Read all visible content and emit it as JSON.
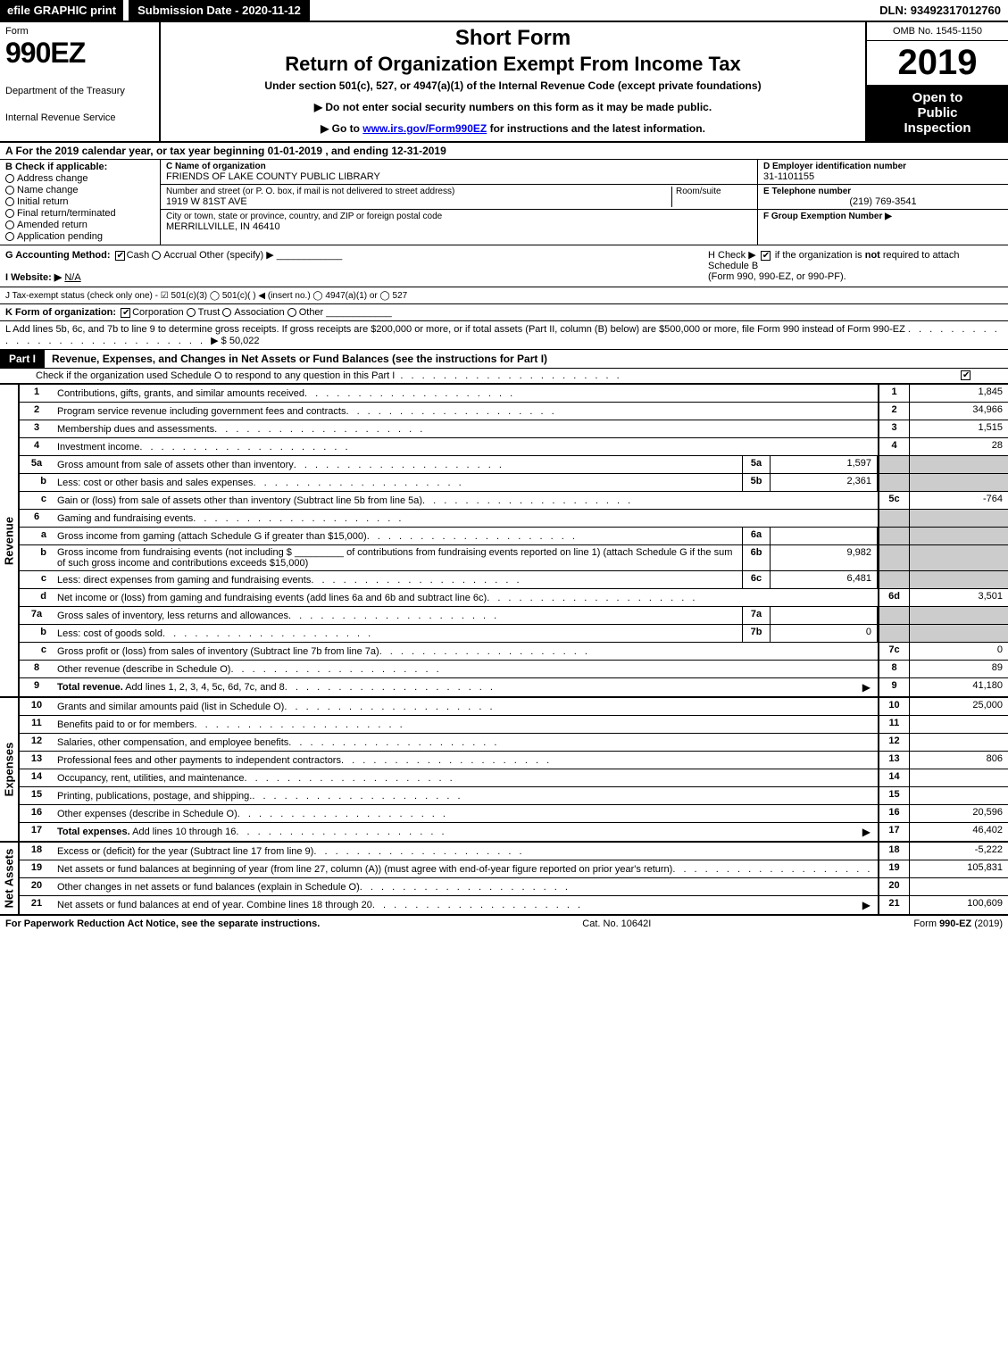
{
  "top": {
    "efile": "efile GRAPHIC print",
    "submission_label": "Submission Date - 2020-11-12",
    "dln": "DLN: 93492317012760"
  },
  "header": {
    "form_label": "Form",
    "form_number": "990EZ",
    "dept1": "Department of the Treasury",
    "dept2": "Internal Revenue Service",
    "short_form": "Short Form",
    "return_title": "Return of Organization Exempt From Income Tax",
    "under_section": "Under section 501(c), 527, or 4947(a)(1) of the Internal Revenue Code (except private foundations)",
    "instr1_prefix": "▶ Do not enter social security numbers on this form as it may be made public.",
    "instr2_prefix": "▶ Go to ",
    "instr2_link": "www.irs.gov/Form990EZ",
    "instr2_suffix": " for instructions and the latest information.",
    "omb": "OMB No. 1545-1150",
    "tax_year": "2019",
    "open1": "Open to",
    "open2": "Public",
    "open3": "Inspection"
  },
  "period": "A For the 2019 calendar year, or tax year beginning 01-01-2019 , and ending 12-31-2019",
  "box_b": {
    "title": "B Check if applicable:",
    "opts": [
      "Address change",
      "Name change",
      "Initial return",
      "Final return/terminated",
      "Amended return",
      "Application pending"
    ]
  },
  "box_c": {
    "name_lbl": "C Name of organization",
    "name_val": "FRIENDS OF LAKE COUNTY PUBLIC LIBRARY",
    "addr_lbl": "Number and street (or P. O. box, if mail is not delivered to street address)",
    "addr_val": "1919 W 81ST AVE",
    "room_lbl": "Room/suite",
    "city_lbl": "City or town, state or province, country, and ZIP or foreign postal code",
    "city_val": "MERRILLVILLE, IN  46410"
  },
  "box_d": {
    "ein_lbl": "D Employer identification number",
    "ein_val": "31-1101155",
    "phone_lbl": "E Telephone number",
    "phone_val": "(219) 769-3541",
    "group_lbl": "F Group Exemption Number ▶"
  },
  "g_row": {
    "label": "G Accounting Method:",
    "cash": "Cash",
    "accrual": "Accrual",
    "other": "Other (specify) ▶"
  },
  "h_row": {
    "text1": "H Check ▶",
    "text2": "if the organization is not required to attach Schedule B",
    "text3": "(Form 990, 990-EZ, or 990-PF)."
  },
  "i_row": {
    "label": "I Website: ▶",
    "val": "N/A"
  },
  "j_row": "J Tax-exempt status (check only one) - ☑ 501(c)(3)  ◯ 501(c)(  ) ◀ (insert no.)  ◯ 4947(a)(1) or  ◯ 527",
  "k_row": {
    "label": "K Form of organization:",
    "corp": "Corporation",
    "trust": "Trust",
    "assoc": "Association",
    "other": "Other"
  },
  "l_row": {
    "text": "L Add lines 5b, 6c, and 7b to line 9 to determine gross receipts. If gross receipts are $200,000 or more, or if total assets (Part II, column (B) below) are $500,000 or more, file Form 990 instead of Form 990-EZ",
    "amount": "▶ $ 50,022"
  },
  "part1": {
    "label": "Part I",
    "title": "Revenue, Expenses, and Changes in Net Assets or Fund Balances (see the instructions for Part I)",
    "sub": "Check if the organization used Schedule O to respond to any question in this Part I"
  },
  "revenue_label": "Revenue",
  "expenses_label": "Expenses",
  "netassets_label": "Net Assets",
  "lines": {
    "l1": {
      "n": "1",
      "d": "Contributions, gifts, grants, and similar amounts received",
      "rn": "1",
      "rv": "1,845"
    },
    "l2": {
      "n": "2",
      "d": "Program service revenue including government fees and contracts",
      "rn": "2",
      "rv": "34,966"
    },
    "l3": {
      "n": "3",
      "d": "Membership dues and assessments",
      "rn": "3",
      "rv": "1,515"
    },
    "l4": {
      "n": "4",
      "d": "Investment income",
      "rn": "4",
      "rv": "28"
    },
    "l5a": {
      "n": "5a",
      "d": "Gross amount from sale of assets other than inventory",
      "mn": "5a",
      "mv": "1,597"
    },
    "l5b": {
      "n": "b",
      "d": "Less: cost or other basis and sales expenses",
      "mn": "5b",
      "mv": "2,361"
    },
    "l5c": {
      "n": "c",
      "d": "Gain or (loss) from sale of assets other than inventory (Subtract line 5b from line 5a)",
      "rn": "5c",
      "rv": "-764"
    },
    "l6": {
      "n": "6",
      "d": "Gaming and fundraising events"
    },
    "l6a": {
      "n": "a",
      "d": "Gross income from gaming (attach Schedule G if greater than $15,000)",
      "mn": "6a",
      "mv": ""
    },
    "l6b": {
      "n": "b",
      "d": "Gross income from fundraising events (not including $ _________ of contributions from fundraising events reported on line 1) (attach Schedule G if the sum of such gross income and contributions exceeds $15,000)",
      "mn": "6b",
      "mv": "9,982"
    },
    "l6c": {
      "n": "c",
      "d": "Less: direct expenses from gaming and fundraising events",
      "mn": "6c",
      "mv": "6,481"
    },
    "l6d": {
      "n": "d",
      "d": "Net income or (loss) from gaming and fundraising events (add lines 6a and 6b and subtract line 6c)",
      "rn": "6d",
      "rv": "3,501"
    },
    "l7a": {
      "n": "7a",
      "d": "Gross sales of inventory, less returns and allowances",
      "mn": "7a",
      "mv": ""
    },
    "l7b": {
      "n": "b",
      "d": "Less: cost of goods sold",
      "mn": "7b",
      "mv": "0"
    },
    "l7c": {
      "n": "c",
      "d": "Gross profit or (loss) from sales of inventory (Subtract line 7b from line 7a)",
      "rn": "7c",
      "rv": "0"
    },
    "l8": {
      "n": "8",
      "d": "Other revenue (describe in Schedule O)",
      "rn": "8",
      "rv": "89"
    },
    "l9": {
      "n": "9",
      "d": "Total revenue. Add lines 1, 2, 3, 4, 5c, 6d, 7c, and 8",
      "rn": "9",
      "rv": "41,180",
      "arrow": true,
      "bold": true
    },
    "l10": {
      "n": "10",
      "d": "Grants and similar amounts paid (list in Schedule O)",
      "rn": "10",
      "rv": "25,000"
    },
    "l11": {
      "n": "11",
      "d": "Benefits paid to or for members",
      "rn": "11",
      "rv": ""
    },
    "l12": {
      "n": "12",
      "d": "Salaries, other compensation, and employee benefits",
      "rn": "12",
      "rv": ""
    },
    "l13": {
      "n": "13",
      "d": "Professional fees and other payments to independent contractors",
      "rn": "13",
      "rv": "806"
    },
    "l14": {
      "n": "14",
      "d": "Occupancy, rent, utilities, and maintenance",
      "rn": "14",
      "rv": ""
    },
    "l15": {
      "n": "15",
      "d": "Printing, publications, postage, and shipping.",
      "rn": "15",
      "rv": ""
    },
    "l16": {
      "n": "16",
      "d": "Other expenses (describe in Schedule O)",
      "rn": "16",
      "rv": "20,596"
    },
    "l17": {
      "n": "17",
      "d": "Total expenses. Add lines 10 through 16",
      "rn": "17",
      "rv": "46,402",
      "arrow": true,
      "bold": true
    },
    "l18": {
      "n": "18",
      "d": "Excess or (deficit) for the year (Subtract line 17 from line 9)",
      "rn": "18",
      "rv": "-5,222"
    },
    "l19": {
      "n": "19",
      "d": "Net assets or fund balances at beginning of year (from line 27, column (A)) (must agree with end-of-year figure reported on prior year's return)",
      "rn": "19",
      "rv": "105,831"
    },
    "l20": {
      "n": "20",
      "d": "Other changes in net assets or fund balances (explain in Schedule O)",
      "rn": "20",
      "rv": ""
    },
    "l21": {
      "n": "21",
      "d": "Net assets or fund balances at end of year. Combine lines 18 through 20",
      "rn": "21",
      "rv": "100,609",
      "arrow": true
    }
  },
  "footer": {
    "left": "For Paperwork Reduction Act Notice, see the separate instructions.",
    "center": "Cat. No. 10642I",
    "right": "Form 990-EZ (2019)"
  },
  "colors": {
    "black": "#000000",
    "white": "#ffffff",
    "shaded": "#cccccc",
    "link": "#0000ee"
  }
}
